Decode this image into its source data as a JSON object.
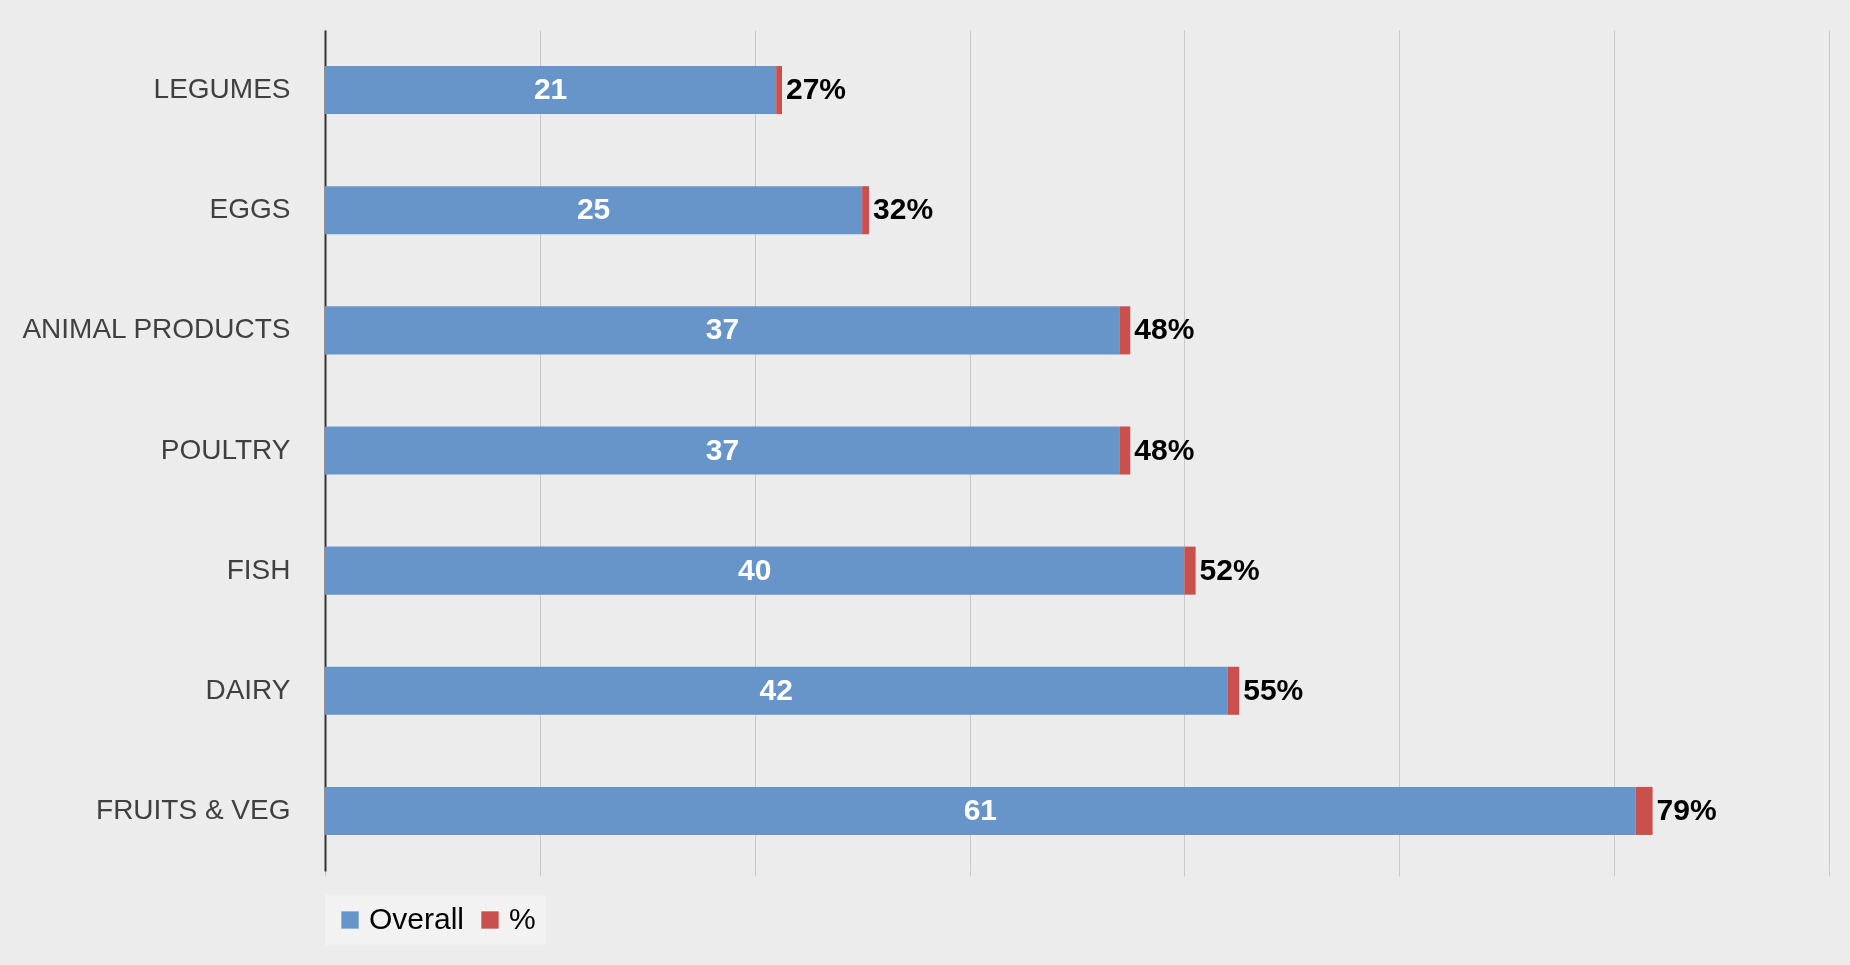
{
  "chart_data": {
    "type": "bar",
    "orientation": "horizontal",
    "stacked": true,
    "categories": [
      "LEGUMES",
      "EGGS",
      "ANIMAL PRODUCTS",
      "POULTRY",
      "FISH",
      "DAIRY",
      "FRUITS & VEG"
    ],
    "series": [
      {
        "name": "Overall",
        "color": "#6895c9",
        "values": [
          21,
          25,
          37,
          37,
          40,
          42,
          61
        ],
        "value_labels": [
          "21",
          "25",
          "37",
          "37",
          "40",
          "42",
          "61"
        ]
      },
      {
        "name": "%",
        "color": "#c9504d",
        "values": [
          0.27,
          0.32,
          0.48,
          0.48,
          0.52,
          0.55,
          0.79
        ],
        "value_labels": [
          "27%",
          "32%",
          "48%",
          "48%",
          "52%",
          "55%",
          "79%"
        ]
      }
    ],
    "xlim": [
      0,
      70
    ],
    "xticks": [
      {
        "value": 0,
        "label": null
      },
      {
        "value": 10,
        "label": null
      },
      {
        "value": 20,
        "label": null
      },
      {
        "value": 30,
        "label": null
      },
      {
        "value": 40,
        "label": null
      },
      {
        "value": 50,
        "label": null
      },
      {
        "value": 60,
        "label": null
      },
      {
        "value": 70,
        "label": null
      }
    ],
    "tick_labels": "y",
    "grid": "x",
    "legend": "bottom"
  }
}
